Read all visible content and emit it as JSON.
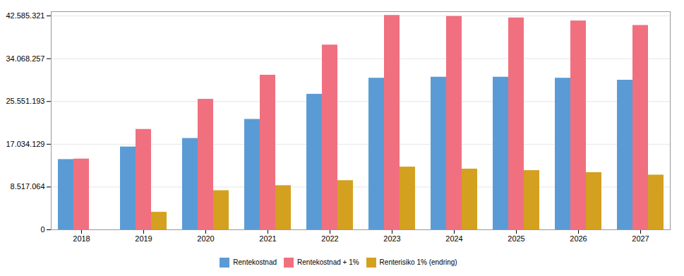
{
  "chart_data": {
    "type": "bar",
    "categories": [
      "2018",
      "2019",
      "2020",
      "2021",
      "2022",
      "2023",
      "2024",
      "2025",
      "2026",
      "2027"
    ],
    "series": [
      {
        "name": "Rentekostnad",
        "color": "#5B9BD5",
        "values": [
          14000000,
          16500000,
          18200000,
          22000000,
          27000000,
          30200000,
          30400000,
          30400000,
          30200000,
          29800000
        ]
      },
      {
        "name": "Rentekostnad + 1%",
        "color": "#F07080",
        "values": [
          14100000,
          20000000,
          26000000,
          30800000,
          36800000,
          42700000,
          42500000,
          42200000,
          41600000,
          40700000
        ]
      },
      {
        "name": "Renterisiko 1% (endring)",
        "color": "#D4A020",
        "values": [
          0,
          3500000,
          7800000,
          8800000,
          9800000,
          12500000,
          12100000,
          11800000,
          11400000,
          10900000
        ]
      }
    ],
    "ylim": [
      0,
      43437027.42
    ],
    "yticks": [
      0,
      {
        "value": 8517064,
        "label": "8.517.064"
      },
      {
        "value": 17034129,
        "label": "17.034.129"
      },
      {
        "value": 25551193,
        "label": "25.551.193"
      },
      {
        "value": 34068257,
        "label": "34.068.257"
      },
      {
        "value": 42585321,
        "label": "42.585.321"
      }
    ],
    "grid": true,
    "legend": "bottom"
  }
}
